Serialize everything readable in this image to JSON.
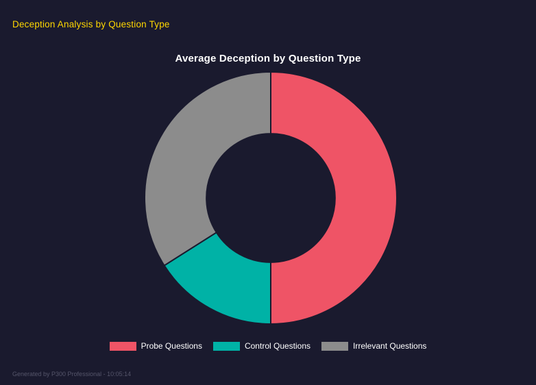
{
  "page": {
    "header_title": "Deception Analysis by Question Type",
    "footer_text": "Generated by P300 Professional - 10:05:14"
  },
  "colors": {
    "background": "#1a1a2e",
    "header_text": "#ffd700",
    "chart_title_text": "#ffffff",
    "legend_text": "#ffffff",
    "footer_text": "#55556a"
  },
  "chart_data": {
    "type": "pie",
    "subtype": "doughnut",
    "title": "Average Deception by Question Type",
    "legend_position": "bottom",
    "start_angle_deg": 0,
    "direction": "clockwise",
    "inner_radius_ratio": 0.51,
    "slices": [
      {
        "label": "Probe Questions",
        "percent": 50,
        "color": "#ef5466"
      },
      {
        "label": "Control Questions",
        "percent": 16,
        "color": "#00b2a6"
      },
      {
        "label": "Irrelevant Questions",
        "percent": 34,
        "color": "#8c8c8c"
      }
    ]
  }
}
